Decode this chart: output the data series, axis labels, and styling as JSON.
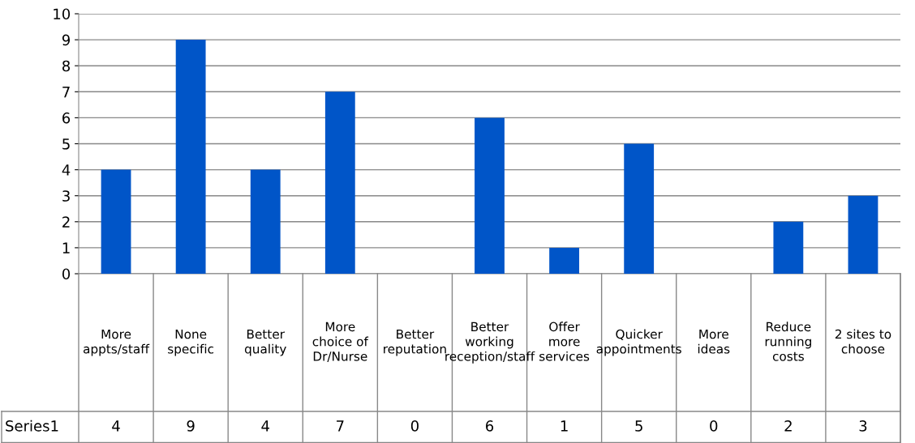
{
  "chart_data": {
    "type": "bar",
    "categories": [
      "More appts/staff",
      "None specific",
      "Better quality",
      "More choice of Dr/Nurse",
      "Better reputation",
      "Better working reception/staff",
      "Offer more services",
      "Quicker appointments",
      "More ideas",
      "Reduce running costs",
      "2 sites to choose"
    ],
    "series": [
      {
        "name": "Series1",
        "color": "#0055c8",
        "values": [
          4,
          9,
          4,
          7,
          0,
          6,
          1,
          5,
          0,
          2,
          3
        ]
      }
    ],
    "ylim": [
      0,
      10
    ],
    "yticks": [
      0,
      1,
      2,
      3,
      4,
      5,
      6,
      7,
      8,
      9,
      10
    ],
    "grid": "y",
    "data_labels": true,
    "legend": false
  }
}
